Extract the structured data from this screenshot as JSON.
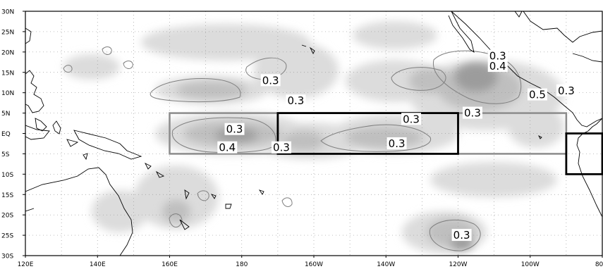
{
  "map": {
    "lon_range": [
      120,
      280
    ],
    "lat_range": [
      -30,
      30
    ],
    "y_labels": [
      "30N",
      "25N",
      "20N",
      "15N",
      "10N",
      "5N",
      "EQ",
      "5S",
      "10S",
      "15S",
      "20S",
      "25S",
      "30S"
    ],
    "x_labels": [
      "120E",
      "140E",
      "160E",
      "180",
      "160W",
      "140W",
      "120W",
      "100W",
      "80W"
    ],
    "contour_labels": [
      {
        "text": "0.3",
        "lon": 188,
        "lat": 13
      },
      {
        "text": "0.3",
        "lon": 195,
        "lat": 8
      },
      {
        "text": "0.3",
        "lon": 178,
        "lat": 1
      },
      {
        "text": "0.4",
        "lon": 176,
        "lat": -3.5
      },
      {
        "text": "0.3",
        "lon": 191,
        "lat": -3.5
      },
      {
        "text": "0.3",
        "lon": 227,
        "lat": 3.5
      },
      {
        "text": "0.3",
        "lon": 244,
        "lat": 5
      },
      {
        "text": "0.3",
        "lon": 223,
        "lat": -2.5
      },
      {
        "text": "0.3",
        "lon": 251,
        "lat": 19
      },
      {
        "text": "0.4",
        "lon": 251,
        "lat": 16.5
      },
      {
        "text": "0.5",
        "lon": 262,
        "lat": 9.5
      },
      {
        "text": "0.3",
        "lon": 270,
        "lat": 10.5
      },
      {
        "text": "0.3",
        "lon": 241,
        "lat": -25
      }
    ],
    "boxes_gray": [
      {
        "lon1": 160,
        "lon2": 270,
        "lat1": 5,
        "lat2": -5
      }
    ],
    "boxes_black": [
      {
        "lon1": 190,
        "lon2": 240,
        "lat1": 5,
        "lat2": -5
      },
      {
        "lon1": 270,
        "lon2": 280,
        "lat1": 0,
        "lat2": -10
      }
    ],
    "colors": {
      "light_shade": "#d9d9d9",
      "mid_shade": "#bdbdbd",
      "dark_shade": "#999999",
      "contour": "#7f7f7f",
      "gray_box": "#8c8c8c",
      "black_box": "#000000",
      "grid": "#9a9a9a",
      "coast": "#000000"
    }
  }
}
